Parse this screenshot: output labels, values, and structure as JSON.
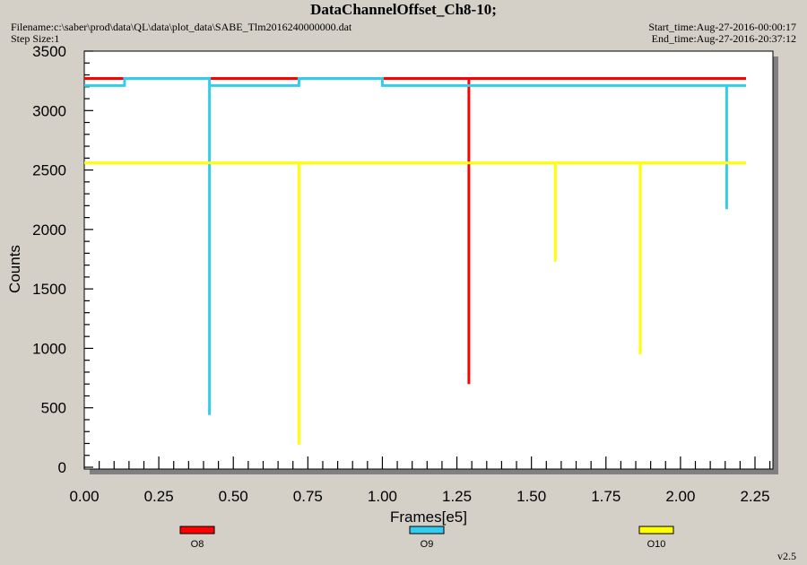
{
  "header": {
    "title": "DataChannelOffset_Ch8-10;",
    "filename": "Filename:c:\\saber\\prod\\data\\QL\\data\\plot_data\\SABE_Tlm2016240000000.dat",
    "step_size": "Step Size:1",
    "start_time": "Start_time:Aug-27-2016-00:00:17",
    "end_time": "End_time:Aug-27-2016-20:37:12"
  },
  "footer": {
    "version": "v2.5"
  },
  "chart_data": {
    "type": "line",
    "title": "DataChannelOffset_Ch8-10;",
    "xlabel": "Frames[e5]",
    "ylabel": "Counts",
    "xlim": [
      0,
      2.32
    ],
    "ylim": [
      0,
      3500
    ],
    "xticks": [
      "0.00",
      "0.25",
      "0.50",
      "0.75",
      "1.00",
      "1.25",
      "1.50",
      "1.75",
      "2.00",
      "2.25"
    ],
    "yticks": [
      "0",
      "500",
      "1000",
      "1500",
      "2000",
      "2500",
      "3000",
      "3500"
    ],
    "background": "#ffffff",
    "series": [
      {
        "name": "O8",
        "color": "#ff0000",
        "points": [
          [
            0.0,
            3270
          ],
          [
            1.29,
            3270
          ],
          [
            1.29,
            700
          ],
          [
            1.29,
            3270
          ],
          [
            2.22,
            3270
          ]
        ]
      },
      {
        "name": "O9",
        "color": "#33ccee",
        "points": [
          [
            0.0,
            3210
          ],
          [
            0.135,
            3210
          ],
          [
            0.135,
            3270
          ],
          [
            0.42,
            3270
          ],
          [
            0.42,
            440
          ],
          [
            0.42,
            3210
          ],
          [
            0.72,
            3210
          ],
          [
            0.72,
            3270
          ],
          [
            1.0,
            3270
          ],
          [
            1.0,
            3210
          ],
          [
            2.155,
            3210
          ],
          [
            2.155,
            2170
          ],
          [
            2.155,
            3210
          ],
          [
            2.22,
            3210
          ]
        ]
      },
      {
        "name": "O10",
        "color": "#ffff00",
        "points": [
          [
            0.0,
            2560
          ],
          [
            0.72,
            2560
          ],
          [
            0.72,
            190
          ],
          [
            0.72,
            2560
          ],
          [
            1.58,
            2560
          ],
          [
            1.58,
            1730
          ],
          [
            1.58,
            2560
          ],
          [
            1.865,
            2560
          ],
          [
            1.865,
            950
          ],
          [
            1.865,
            2560
          ],
          [
            2.22,
            2560
          ]
        ]
      }
    ]
  }
}
